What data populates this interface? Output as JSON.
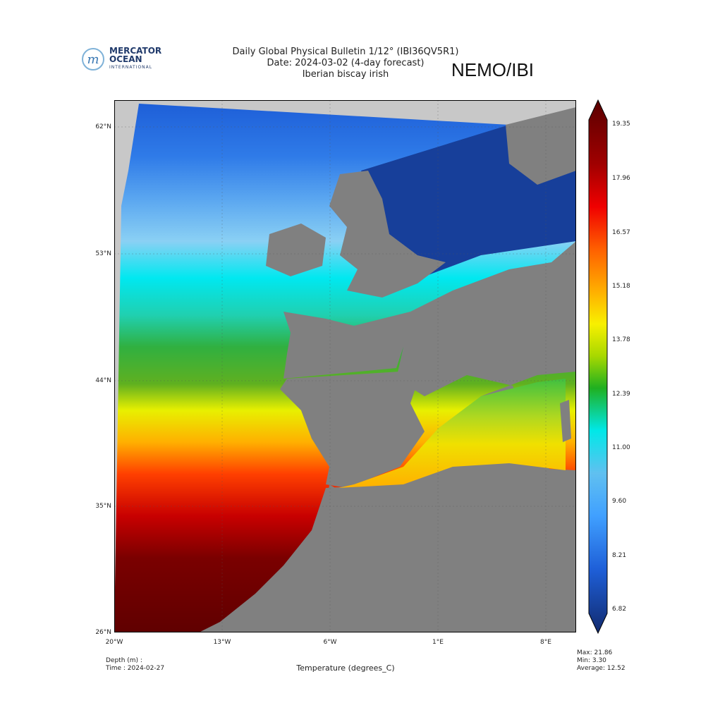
{
  "logo": {
    "line1": "MERCATOR",
    "line2": "OCEAN",
    "line3": "INTERNATIONAL"
  },
  "title": {
    "line1": "Daily Global Physical Bulletin 1/12° (IBI36QV5R1)",
    "line2": "Date: 2024-03-02 (4-day forecast)",
    "line3": "Iberian biscay irish"
  },
  "model_label": "NEMO/IBI",
  "map": {
    "lat_ticks": [
      "62°N",
      "53°N",
      "44°N",
      "35°N",
      "26°N"
    ],
    "lon_ticks": [
      "20°W",
      "13°W",
      "6°W",
      "1°E",
      "8°E"
    ],
    "colors": {
      "land": "#808080",
      "outside": "#c8c8c8"
    }
  },
  "colorbar": {
    "ticks": [
      "19.35",
      "17.96",
      "16.57",
      "15.18",
      "13.78",
      "12.39",
      "11.00",
      "9.60",
      "8.21",
      "6.82"
    ],
    "colors": [
      "#5a0000",
      "#c00000",
      "#ff3000",
      "#ff8c00",
      "#ffd000",
      "#f0f000",
      "#a8d800",
      "#20b020",
      "#00e0e0",
      "#40a0ff",
      "#1e5fd8",
      "#122a6e"
    ]
  },
  "footer": {
    "depth": "Depth (m) :",
    "time": "Time : 2024-02-27",
    "xlabel": "Temperature (degrees_C)",
    "max": "Max: 21.86",
    "min": "Min:  3.30",
    "average": "Average: 12.52"
  }
}
